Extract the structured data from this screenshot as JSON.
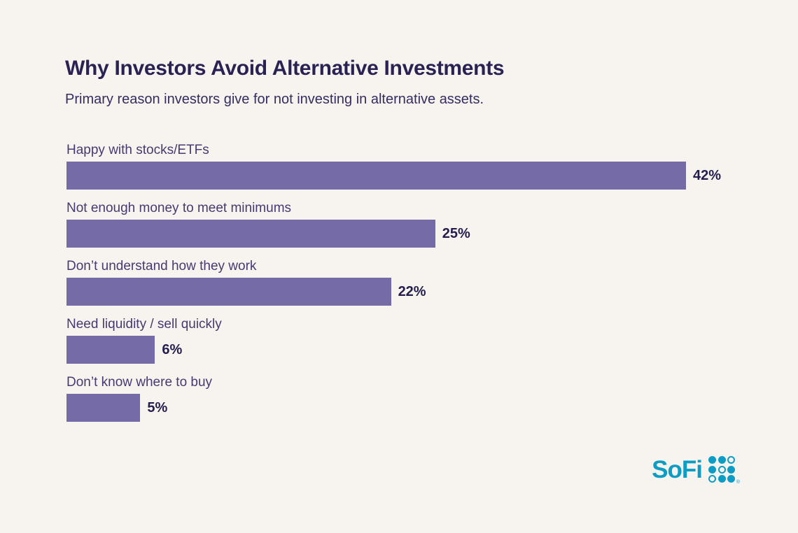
{
  "colors": {
    "background": "#f7f4ef",
    "title": "#2b2254",
    "subtitle": "#352c60",
    "label": "#453a72",
    "value": "#251d4d",
    "bar": "#756ba6",
    "logo": "#0d9dc4"
  },
  "chart_data": {
    "type": "bar",
    "orientation": "horizontal",
    "title": "Why Investors Avoid Alternative Investments",
    "subtitle": "Primary reason investors give for not investing in alternative assets.",
    "categories": [
      "Happy with stocks/ETFs",
      "Not enough money to meet minimums",
      "Don’t understand how they work",
      "Need liquidity / sell quickly",
      "Don’t know where to buy"
    ],
    "values": [
      42,
      25,
      22,
      6,
      5
    ],
    "value_labels": [
      "42%",
      "25%",
      "22%",
      "6%",
      "5%"
    ],
    "unit": "%",
    "xlim": [
      0,
      42
    ],
    "axis": "hidden",
    "grid": false,
    "legend": "none",
    "value_label_position": "end-of-bar",
    "bar_color": "#756ba6"
  },
  "branding": {
    "logo_text": "SoFi",
    "logo_color": "#0d9dc4",
    "registered_mark": "®",
    "dot_pattern": [
      1,
      1,
      0,
      1,
      0,
      1,
      0,
      1,
      1
    ]
  }
}
